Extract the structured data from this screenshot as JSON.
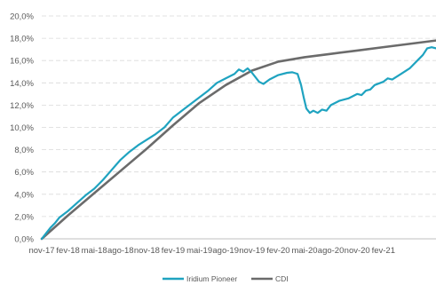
{
  "chart_data": {
    "type": "line",
    "title": "",
    "xlabel": "",
    "ylabel": "",
    "x_tick_labels": [
      "nov-17",
      "fev-18",
      "mai-18",
      "ago-18",
      "nov-18",
      "fev-19",
      "mai-19",
      "ago-19",
      "nov-19",
      "fev-20",
      "mai-20",
      "ago-20",
      "nov-20",
      "fev-21"
    ],
    "y_tick_labels": [
      "0,0%",
      "2,0%",
      "4,0%",
      "6,0%",
      "8,0%",
      "10,0%",
      "12,0%",
      "14,0%",
      "16,0%",
      "18,0%",
      "20,0%"
    ],
    "ylim": [
      0,
      20
    ],
    "grid": true,
    "legend_position": "bottom",
    "series": [
      {
        "name": "Iridium Pioneer",
        "color": "#1FA3C0",
        "points": [
          [
            0,
            0
          ],
          [
            0.5,
            0.5
          ],
          [
            1,
            1.0
          ],
          [
            1.5,
            1.4
          ],
          [
            2,
            1.9
          ],
          [
            3,
            2.5
          ],
          [
            4,
            3.2
          ],
          [
            5,
            3.9
          ],
          [
            6,
            4.5
          ],
          [
            7,
            5.3
          ],
          [
            8,
            6.2
          ],
          [
            9,
            7.1
          ],
          [
            10,
            7.8
          ],
          [
            11,
            8.4
          ],
          [
            12,
            8.9
          ],
          [
            13,
            9.4
          ],
          [
            14,
            10.0
          ],
          [
            15,
            10.9
          ],
          [
            16,
            11.5
          ],
          [
            17,
            12.1
          ],
          [
            18,
            12.7
          ],
          [
            19,
            13.3
          ],
          [
            20,
            14.0
          ],
          [
            21,
            14.4
          ],
          [
            22,
            14.8
          ],
          [
            22.5,
            15.2
          ],
          [
            23,
            15.0
          ],
          [
            23.5,
            15.3
          ],
          [
            24,
            14.9
          ],
          [
            24.8,
            14.1
          ],
          [
            25.3,
            13.9
          ],
          [
            26,
            14.3
          ],
          [
            27,
            14.7
          ],
          [
            28,
            14.9
          ],
          [
            28.6,
            14.95
          ],
          [
            29.2,
            14.8
          ],
          [
            29.6,
            13.8
          ],
          [
            29.9,
            12.7
          ],
          [
            30.2,
            11.7
          ],
          [
            30.6,
            11.3
          ],
          [
            31,
            11.5
          ],
          [
            31.5,
            11.3
          ],
          [
            32,
            11.6
          ],
          [
            32.5,
            11.5
          ],
          [
            33,
            12.0
          ],
          [
            34,
            12.4
          ],
          [
            35,
            12.6
          ],
          [
            35.5,
            12.8
          ],
          [
            36,
            13.0
          ],
          [
            36.5,
            12.9
          ],
          [
            37,
            13.3
          ],
          [
            37.5,
            13.4
          ],
          [
            38,
            13.8
          ],
          [
            39,
            14.1
          ],
          [
            39.5,
            14.4
          ],
          [
            40,
            14.3
          ],
          [
            41,
            14.8
          ],
          [
            42,
            15.3
          ],
          [
            43,
            16.1
          ],
          [
            43.5,
            16.5
          ],
          [
            44,
            17.1
          ],
          [
            44.5,
            17.2
          ],
          [
            45,
            17.1
          ]
        ]
      },
      {
        "name": "CDI",
        "color": "#6B6B6B",
        "points": [
          [
            0,
            0
          ],
          [
            3,
            2.1
          ],
          [
            6,
            4.1
          ],
          [
            9,
            6.1
          ],
          [
            12,
            8.1
          ],
          [
            15,
            10.2
          ],
          [
            18,
            12.2
          ],
          [
            21,
            13.8
          ],
          [
            24,
            15.1
          ],
          [
            27,
            15.9
          ],
          [
            30,
            16.3
          ],
          [
            33,
            16.6
          ],
          [
            36,
            16.9
          ],
          [
            39,
            17.2
          ],
          [
            42,
            17.5
          ],
          [
            45,
            17.8
          ]
        ]
      }
    ]
  }
}
